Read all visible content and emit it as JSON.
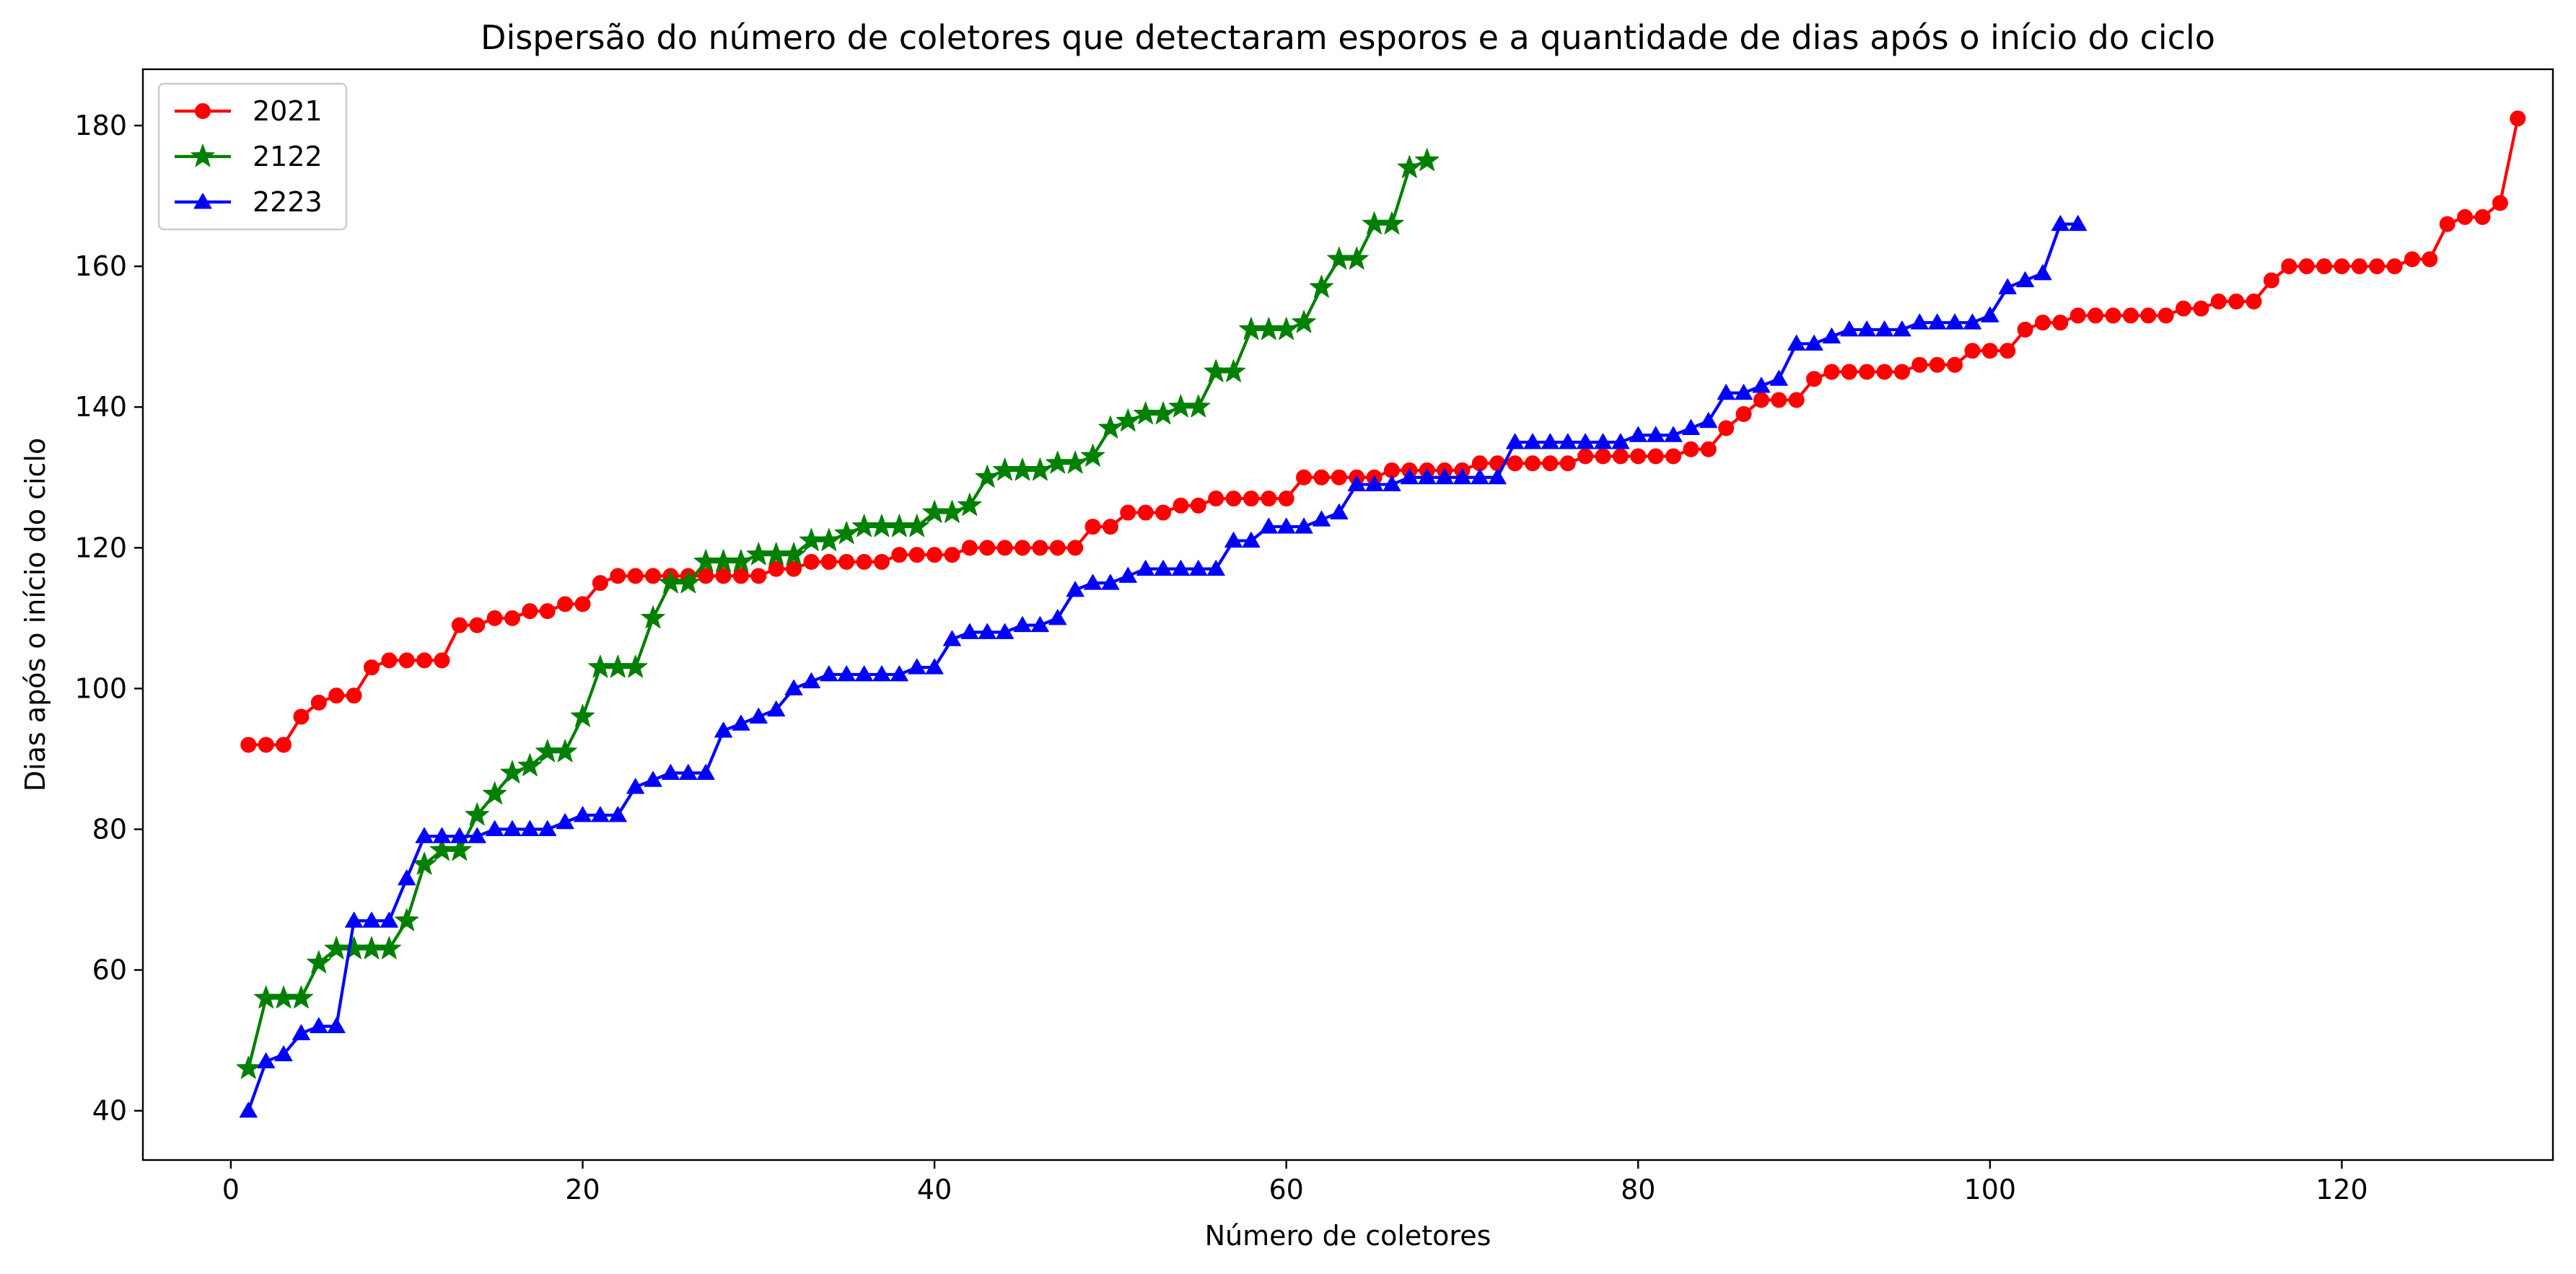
{
  "chart_data": {
    "type": "line",
    "title": "Dispersão do número de coletores que detectaram esporos e a quantidade de dias após o início do ciclo",
    "xlabel": "Número de coletores",
    "ylabel": "Dias após o início do ciclo",
    "xlim": [
      -5,
      132
    ],
    "ylim": [
      33,
      188
    ],
    "xticks": [
      0,
      20,
      40,
      60,
      80,
      100,
      120
    ],
    "yticks": [
      40,
      60,
      80,
      100,
      120,
      140,
      160,
      180
    ],
    "grid": false,
    "legend_position": "top-left",
    "series": [
      {
        "name": "2021",
        "color": "#ff0000",
        "marker": "circle",
        "x_start": 1,
        "values": [
          92,
          92,
          92,
          96,
          98,
          99,
          99,
          103,
          104,
          104,
          104,
          104,
          109,
          109,
          110,
          110,
          111,
          111,
          112,
          112,
          115,
          116,
          116,
          116,
          116,
          116,
          116,
          116,
          116,
          116,
          117,
          117,
          118,
          118,
          118,
          118,
          118,
          119,
          119,
          119,
          119,
          120,
          120,
          120,
          120,
          120,
          120,
          120,
          123,
          123,
          125,
          125,
          125,
          126,
          126,
          127,
          127,
          127,
          127,
          127,
          130,
          130,
          130,
          130,
          130,
          131,
          131,
          131,
          131,
          131,
          132,
          132,
          132,
          132,
          132,
          132,
          133,
          133,
          133,
          133,
          133,
          133,
          134,
          134,
          137,
          139,
          141,
          141,
          141,
          144,
          145,
          145,
          145,
          145,
          145,
          146,
          146,
          146,
          148,
          148,
          148,
          151,
          152,
          152,
          153,
          153,
          153,
          153,
          153,
          153,
          154,
          154,
          155,
          155,
          155,
          158,
          160,
          160,
          160,
          160,
          160,
          160,
          160,
          161,
          161,
          166,
          167,
          167,
          169,
          181
        ]
      },
      {
        "name": "2122",
        "color": "#008000",
        "marker": "star",
        "x_start": 1,
        "values": [
          46,
          56,
          56,
          56,
          61,
          63,
          63,
          63,
          63,
          67,
          75,
          77,
          77,
          82,
          85,
          88,
          89,
          91,
          91,
          96,
          103,
          103,
          103,
          110,
          115,
          115,
          118,
          118,
          118,
          119,
          119,
          119,
          121,
          121,
          122,
          123,
          123,
          123,
          123,
          125,
          125,
          126,
          130,
          131,
          131,
          131,
          132,
          132,
          133,
          137,
          138,
          139,
          139,
          140,
          140,
          145,
          145,
          151,
          151,
          151,
          152,
          157,
          161,
          161,
          166,
          166,
          174,
          175
        ]
      },
      {
        "name": "2223",
        "color": "#0000ff",
        "marker": "triangle",
        "x_start": 1,
        "values": [
          40,
          47,
          48,
          51,
          52,
          52,
          67,
          67,
          67,
          73,
          79,
          79,
          79,
          79,
          80,
          80,
          80,
          80,
          81,
          82,
          82,
          82,
          86,
          87,
          88,
          88,
          88,
          94,
          95,
          96,
          97,
          100,
          101,
          102,
          102,
          102,
          102,
          102,
          103,
          103,
          107,
          108,
          108,
          108,
          109,
          109,
          110,
          114,
          115,
          115,
          116,
          117,
          117,
          117,
          117,
          117,
          121,
          121,
          123,
          123,
          123,
          124,
          125,
          129,
          129,
          129,
          130,
          130,
          130,
          130,
          130,
          130,
          135,
          135,
          135,
          135,
          135,
          135,
          135,
          136,
          136,
          136,
          137,
          138,
          142,
          142,
          143,
          144,
          149,
          149,
          150,
          151,
          151,
          151,
          151,
          152,
          152,
          152,
          152,
          153,
          157,
          158,
          159,
          166,
          166
        ]
      }
    ]
  }
}
